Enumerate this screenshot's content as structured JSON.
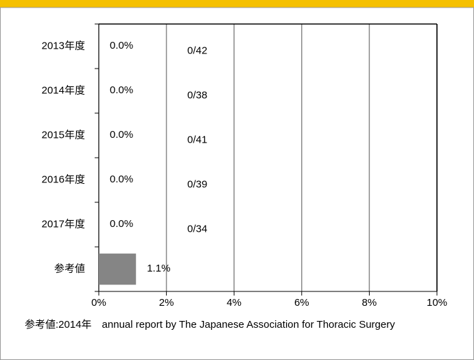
{
  "chart_data": {
    "type": "bar",
    "orientation": "horizontal",
    "categories": [
      "2013年度",
      "2014年度",
      "2015年度",
      "2016年度",
      "2017年度",
      "参考値"
    ],
    "values": [
      0,
      0,
      0,
      0,
      0,
      1.1
    ],
    "value_labels": [
      "0.0%",
      "0.0%",
      "0.0%",
      "0.0%",
      "0.0%",
      "1.1%"
    ],
    "annotations": [
      "0/42",
      "0/38",
      "0/41",
      "0/39",
      "0/34",
      null
    ],
    "color": "#858585",
    "xlim": [
      0,
      10
    ],
    "xticks": [
      {
        "value": 0,
        "label": "0%"
      },
      {
        "value": 2,
        "label": "2%"
      },
      {
        "value": 4,
        "label": "4%"
      },
      {
        "value": 6,
        "label": "6%"
      },
      {
        "value": 8,
        "label": "8%"
      },
      {
        "value": 10,
        "label": "10%"
      }
    ],
    "grid": true
  },
  "footnote": {
    "label": "参考値:",
    "text": "2014年　annual report by The Japanese Association for Thoracic Surgery"
  }
}
